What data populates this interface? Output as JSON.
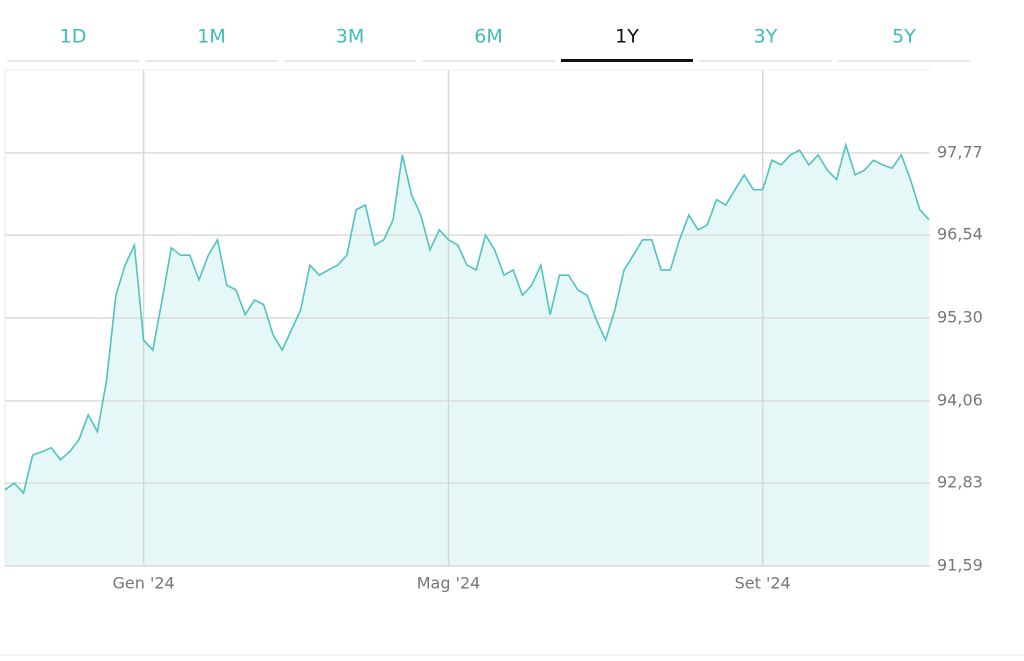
{
  "tabs": [
    "1D",
    "1M",
    "3M",
    "6M",
    "1Y",
    "3Y",
    "5Y"
  ],
  "selected_tab": "1Y",
  "chart_data": {
    "type": "line",
    "color": "#4fc3c0",
    "fill": "#e6f7f7",
    "categories": [
      null,
      null,
      null,
      null,
      null,
      null,
      null,
      null,
      null,
      null,
      null,
      null,
      null,
      null,
      null,
      "Gen '24",
      null,
      null,
      null,
      null,
      null,
      null,
      null,
      null,
      null,
      null,
      null,
      null,
      null,
      null,
      null,
      null,
      null,
      null,
      null,
      null,
      null,
      null,
      null,
      null,
      null,
      null,
      null,
      null,
      null,
      null,
      null,
      null,
      "Mag '24",
      null,
      null,
      null,
      null,
      null,
      null,
      null,
      null,
      null,
      null,
      null,
      null,
      null,
      null,
      null,
      null,
      null,
      null,
      null,
      null,
      null,
      null,
      null,
      null,
      null,
      null,
      null,
      null,
      null,
      null,
      null,
      null,
      null,
      "Set '24",
      null,
      null,
      null,
      null,
      null,
      null,
      null,
      null,
      null,
      null,
      null,
      null,
      null,
      null,
      null,
      null,
      null,
      null
    ],
    "values": [
      92.73,
      92.83,
      92.68,
      93.25,
      93.3,
      93.36,
      93.18,
      93.3,
      93.48,
      93.85,
      93.6,
      94.37,
      95.64,
      96.09,
      96.39,
      94.97,
      94.82,
      95.57,
      96.35,
      96.24,
      96.24,
      95.87,
      96.24,
      96.47,
      95.79,
      95.72,
      95.35,
      95.57,
      95.5,
      95.05,
      94.82,
      95.12,
      95.42,
      96.09,
      95.94,
      96.02,
      96.09,
      96.24,
      96.92,
      96.99,
      96.39,
      96.47,
      96.77,
      97.74,
      97.14,
      96.84,
      96.32,
      96.62,
      96.47,
      96.39,
      96.09,
      96.02,
      96.54,
      96.32,
      95.94,
      96.02,
      95.64,
      95.79,
      96.09,
      95.35,
      95.94,
      95.94,
      95.72,
      95.64,
      95.27,
      94.97,
      95.42,
      96.02,
      96.24,
      96.47,
      96.47,
      96.02,
      96.02,
      96.47,
      96.84,
      96.62,
      96.69,
      97.07,
      96.99,
      97.22,
      97.44,
      97.22,
      97.22,
      97.66,
      97.59,
      97.74,
      97.81,
      97.59,
      97.74,
      97.51,
      97.37,
      97.89,
      97.44,
      97.51,
      97.66,
      97.59,
      97.54,
      97.74,
      97.37,
      96.92,
      96.77
    ],
    "ylim": [
      91.59,
      99.01
    ],
    "yticks": [
      {
        "value": 91.59,
        "label": "91,59"
      },
      {
        "value": 92.83,
        "label": "92,83"
      },
      {
        "value": 94.06,
        "label": "94,06"
      },
      {
        "value": 95.3,
        "label": "95,30"
      },
      {
        "value": 96.54,
        "label": "96,54"
      },
      {
        "value": 97.77,
        "label": "97,77"
      }
    ],
    "grid": true
  }
}
